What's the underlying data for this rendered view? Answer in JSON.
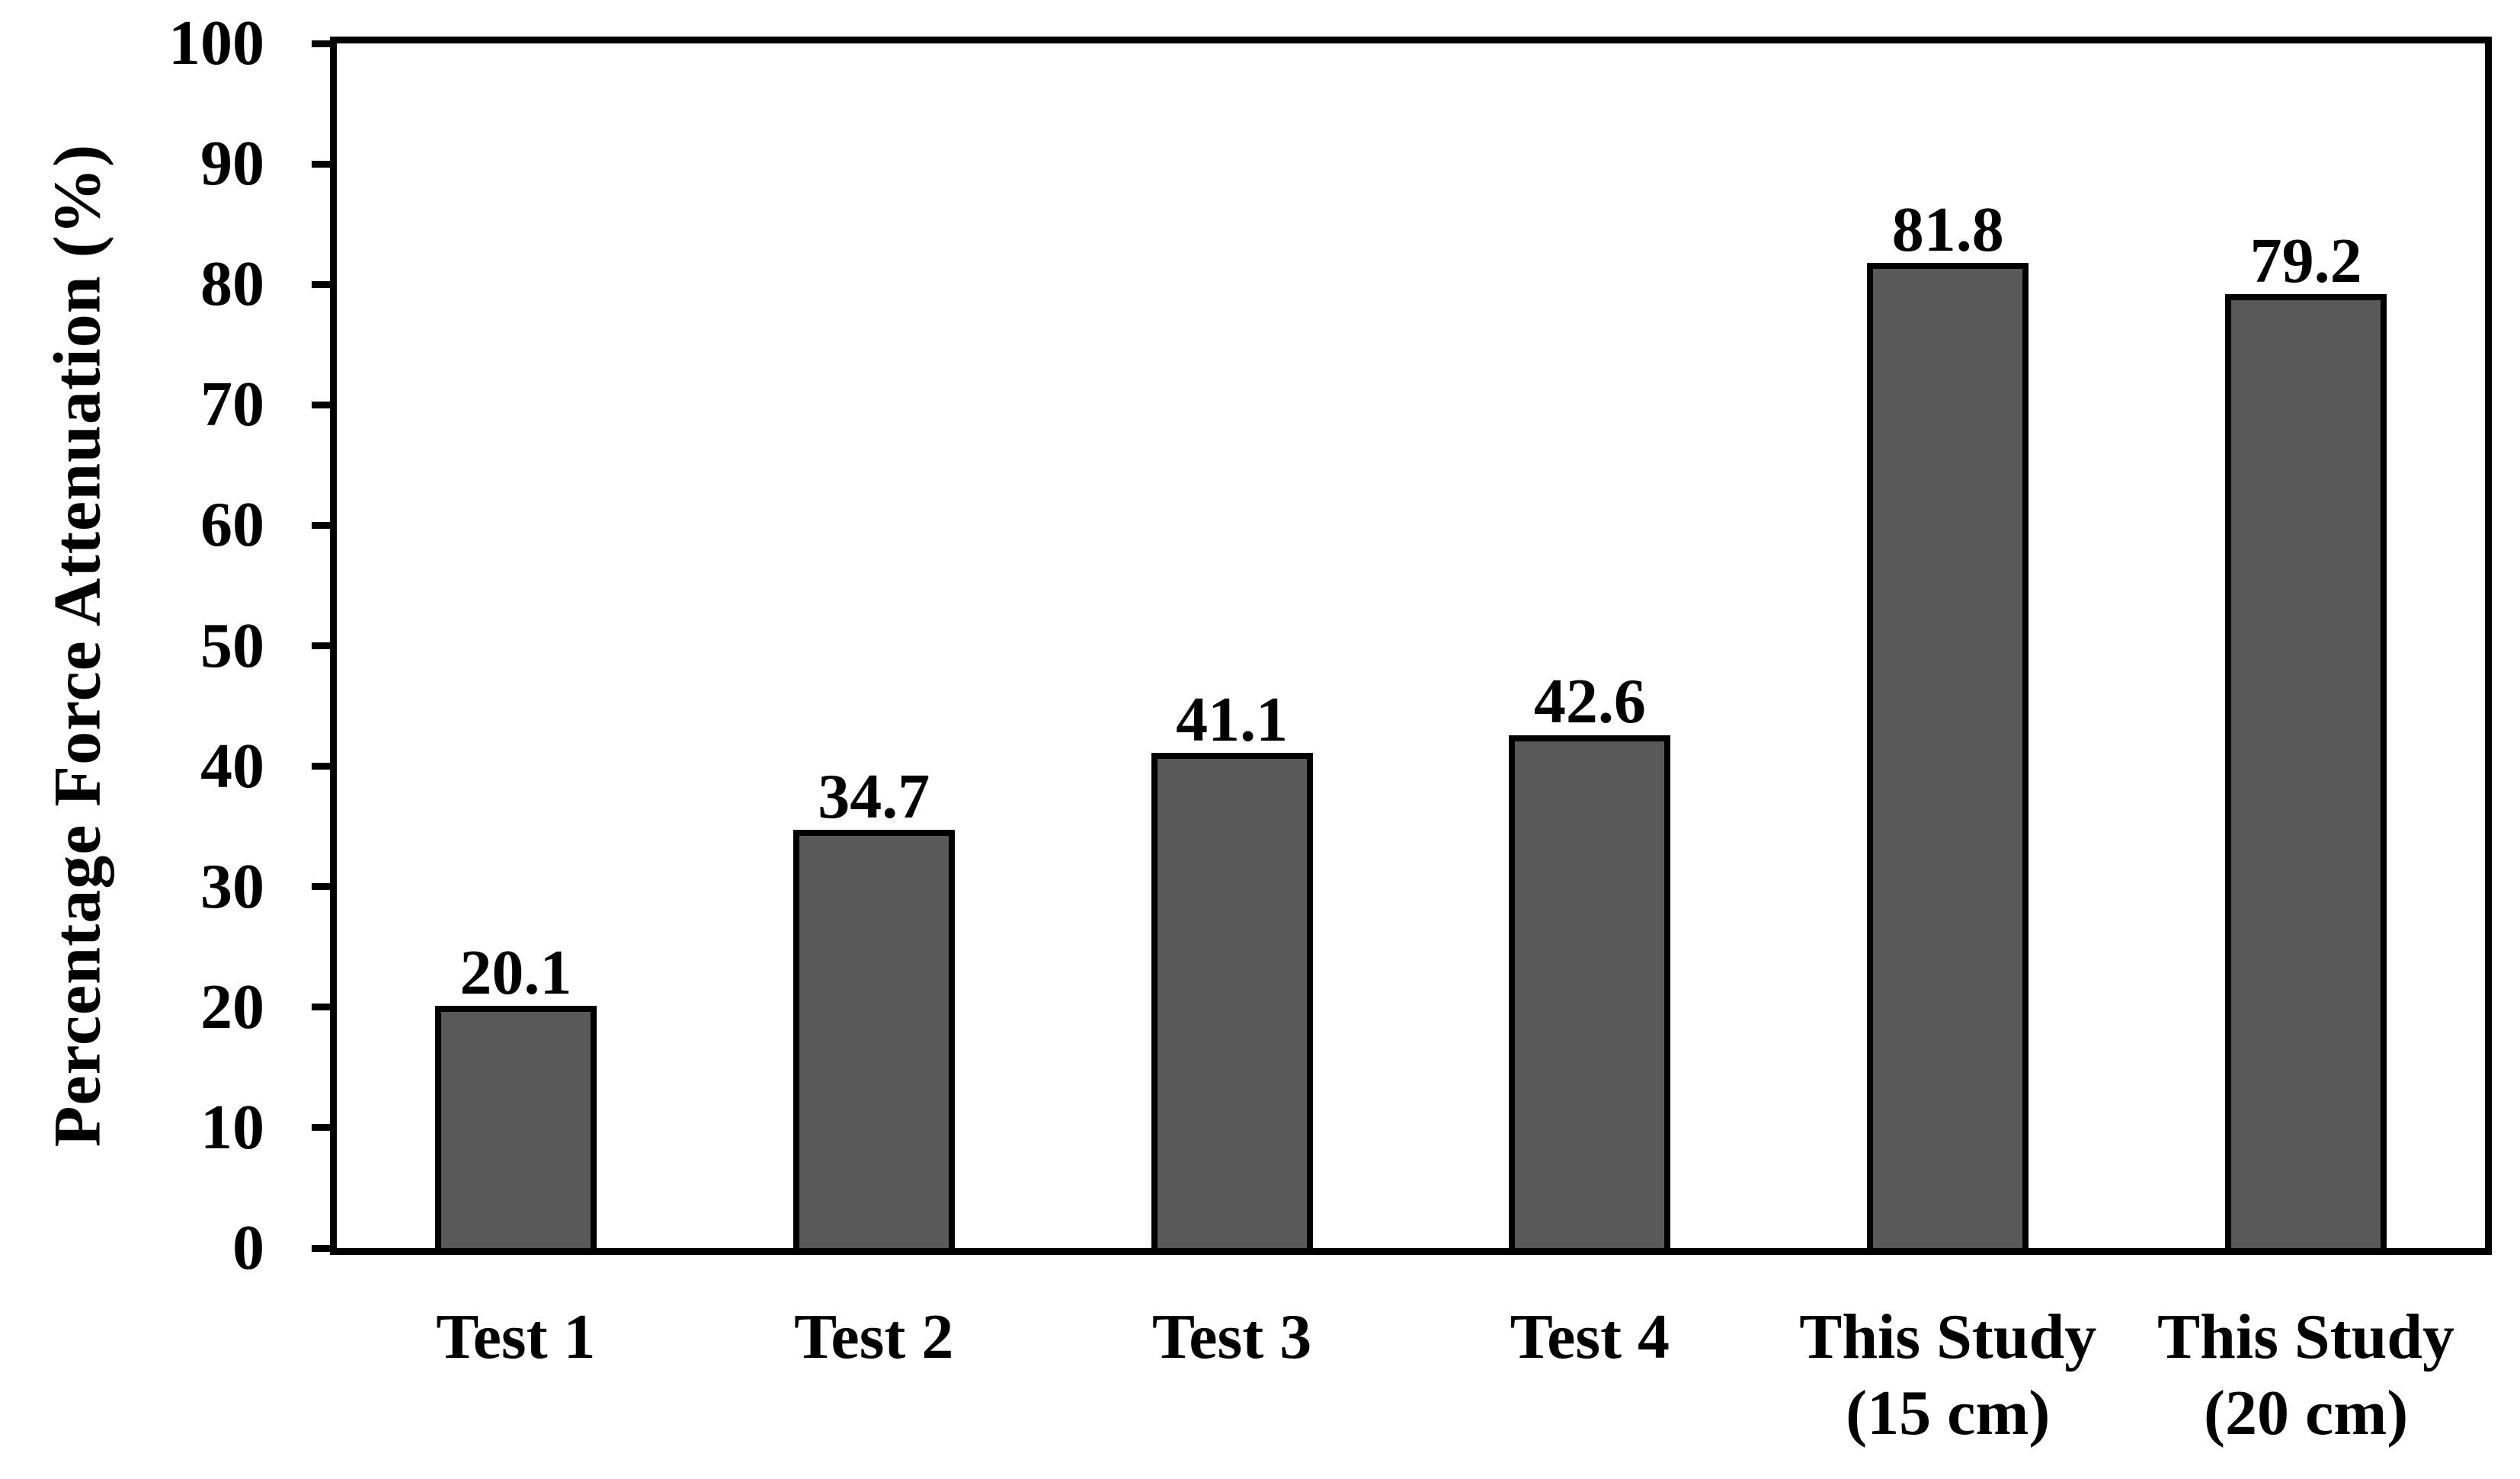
{
  "chart_data": {
    "type": "bar",
    "title": "",
    "xlabel": "",
    "ylabel": "Percentage Force Attenuation (%)",
    "ylim": [
      0,
      100
    ],
    "ytick_step": 10,
    "yticks": [
      0,
      10,
      20,
      30,
      40,
      50,
      60,
      70,
      80,
      90,
      100
    ],
    "categories": [
      [
        "Test 1"
      ],
      [
        "Test 2"
      ],
      [
        "Test 3"
      ],
      [
        "Test 4"
      ],
      [
        "This Study",
        "(15 cm)"
      ],
      [
        "This Study",
        "(20 cm)"
      ]
    ],
    "values": [
      20.1,
      34.7,
      41.1,
      42.6,
      81.8,
      79.2
    ],
    "value_labels": [
      "20.1",
      "34.7",
      "41.1",
      "42.6",
      "81.8",
      "79.2"
    ],
    "grid": false,
    "legend": false,
    "colors": {
      "bar_fill": "#595959",
      "bar_border": "#000000",
      "axis": "#000000",
      "background": "#ffffff",
      "text": "#000000"
    }
  }
}
